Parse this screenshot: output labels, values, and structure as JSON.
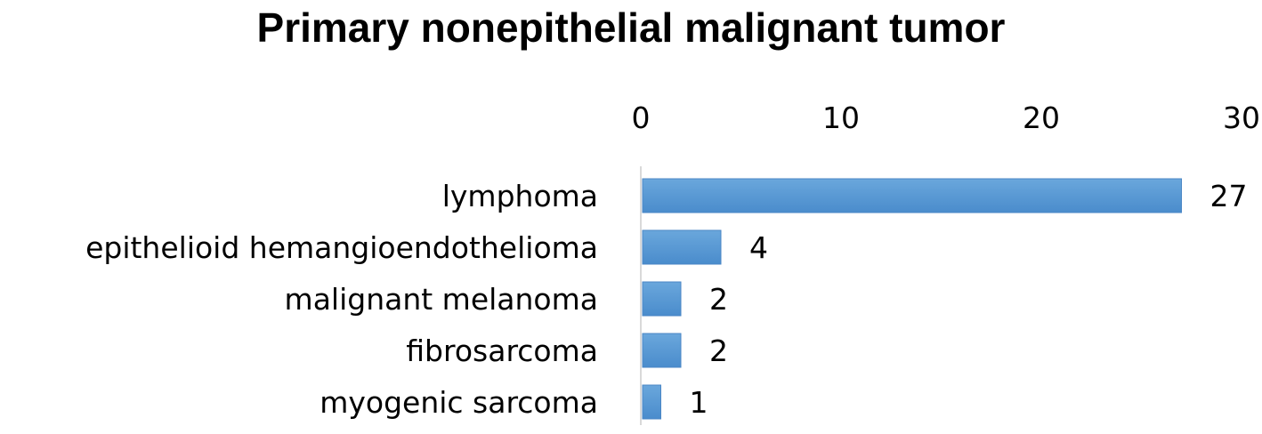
{
  "chart_data": {
    "type": "bar",
    "orientation": "horizontal",
    "title": "Primary nonepithelial malignant tumor",
    "categories": [
      "lymphoma",
      "epithelioid hemangioendothelioma",
      "malignant melanoma",
      "fibrosarcoma",
      "myogenic sarcoma"
    ],
    "values": [
      27,
      4,
      2,
      2,
      1
    ],
    "data_labels": [
      "27",
      "4",
      "2",
      "2",
      "1"
    ],
    "xlim": [
      0,
      30
    ],
    "x_ticks": [
      0,
      10,
      20,
      30
    ],
    "x_tick_labels": [
      "0",
      "10",
      "20",
      "30"
    ],
    "x_axis_position": "top",
    "grid": false,
    "legend": "none",
    "bar_color": "#5b9bd5"
  }
}
